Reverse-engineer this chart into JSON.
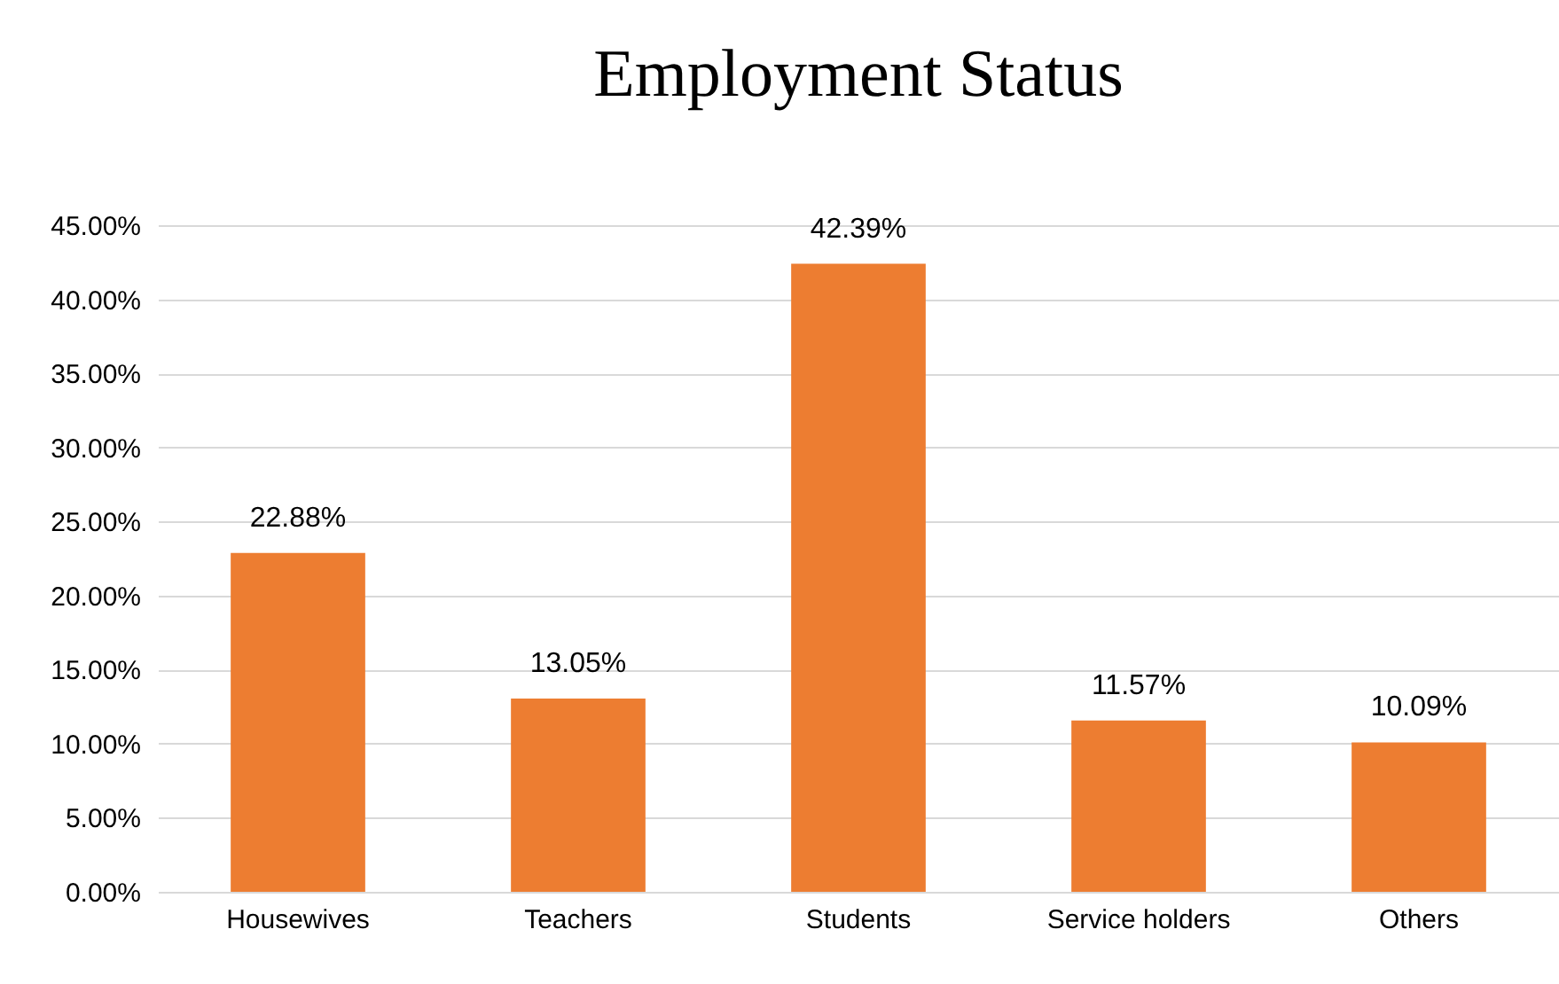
{
  "chart_data": {
    "type": "bar",
    "title": "Employment Status",
    "categories": [
      "Housewives",
      "Teachers",
      "Students",
      "Service holders",
      "Others"
    ],
    "values": [
      22.88,
      13.05,
      42.39,
      11.57,
      10.09
    ],
    "value_labels": [
      "22.88%",
      "13.05%",
      "42.39%",
      "11.57%",
      "10.09%"
    ],
    "color": "#ed7d31",
    "ylim": [
      0,
      45
    ],
    "yticks": [
      {
        "value": 0,
        "label": "0.00%"
      },
      {
        "value": 5,
        "label": "5.00%"
      },
      {
        "value": 10,
        "label": "10.00%"
      },
      {
        "value": 15,
        "label": "15.00%"
      },
      {
        "value": 20,
        "label": "20.00%"
      },
      {
        "value": 25,
        "label": "25.00%"
      },
      {
        "value": 30,
        "label": "30.00%"
      },
      {
        "value": 35,
        "label": "35.00%"
      },
      {
        "value": 40,
        "label": "40.00%"
      },
      {
        "value": 45,
        "label": "45.00%"
      }
    ],
    "grid": "y"
  }
}
